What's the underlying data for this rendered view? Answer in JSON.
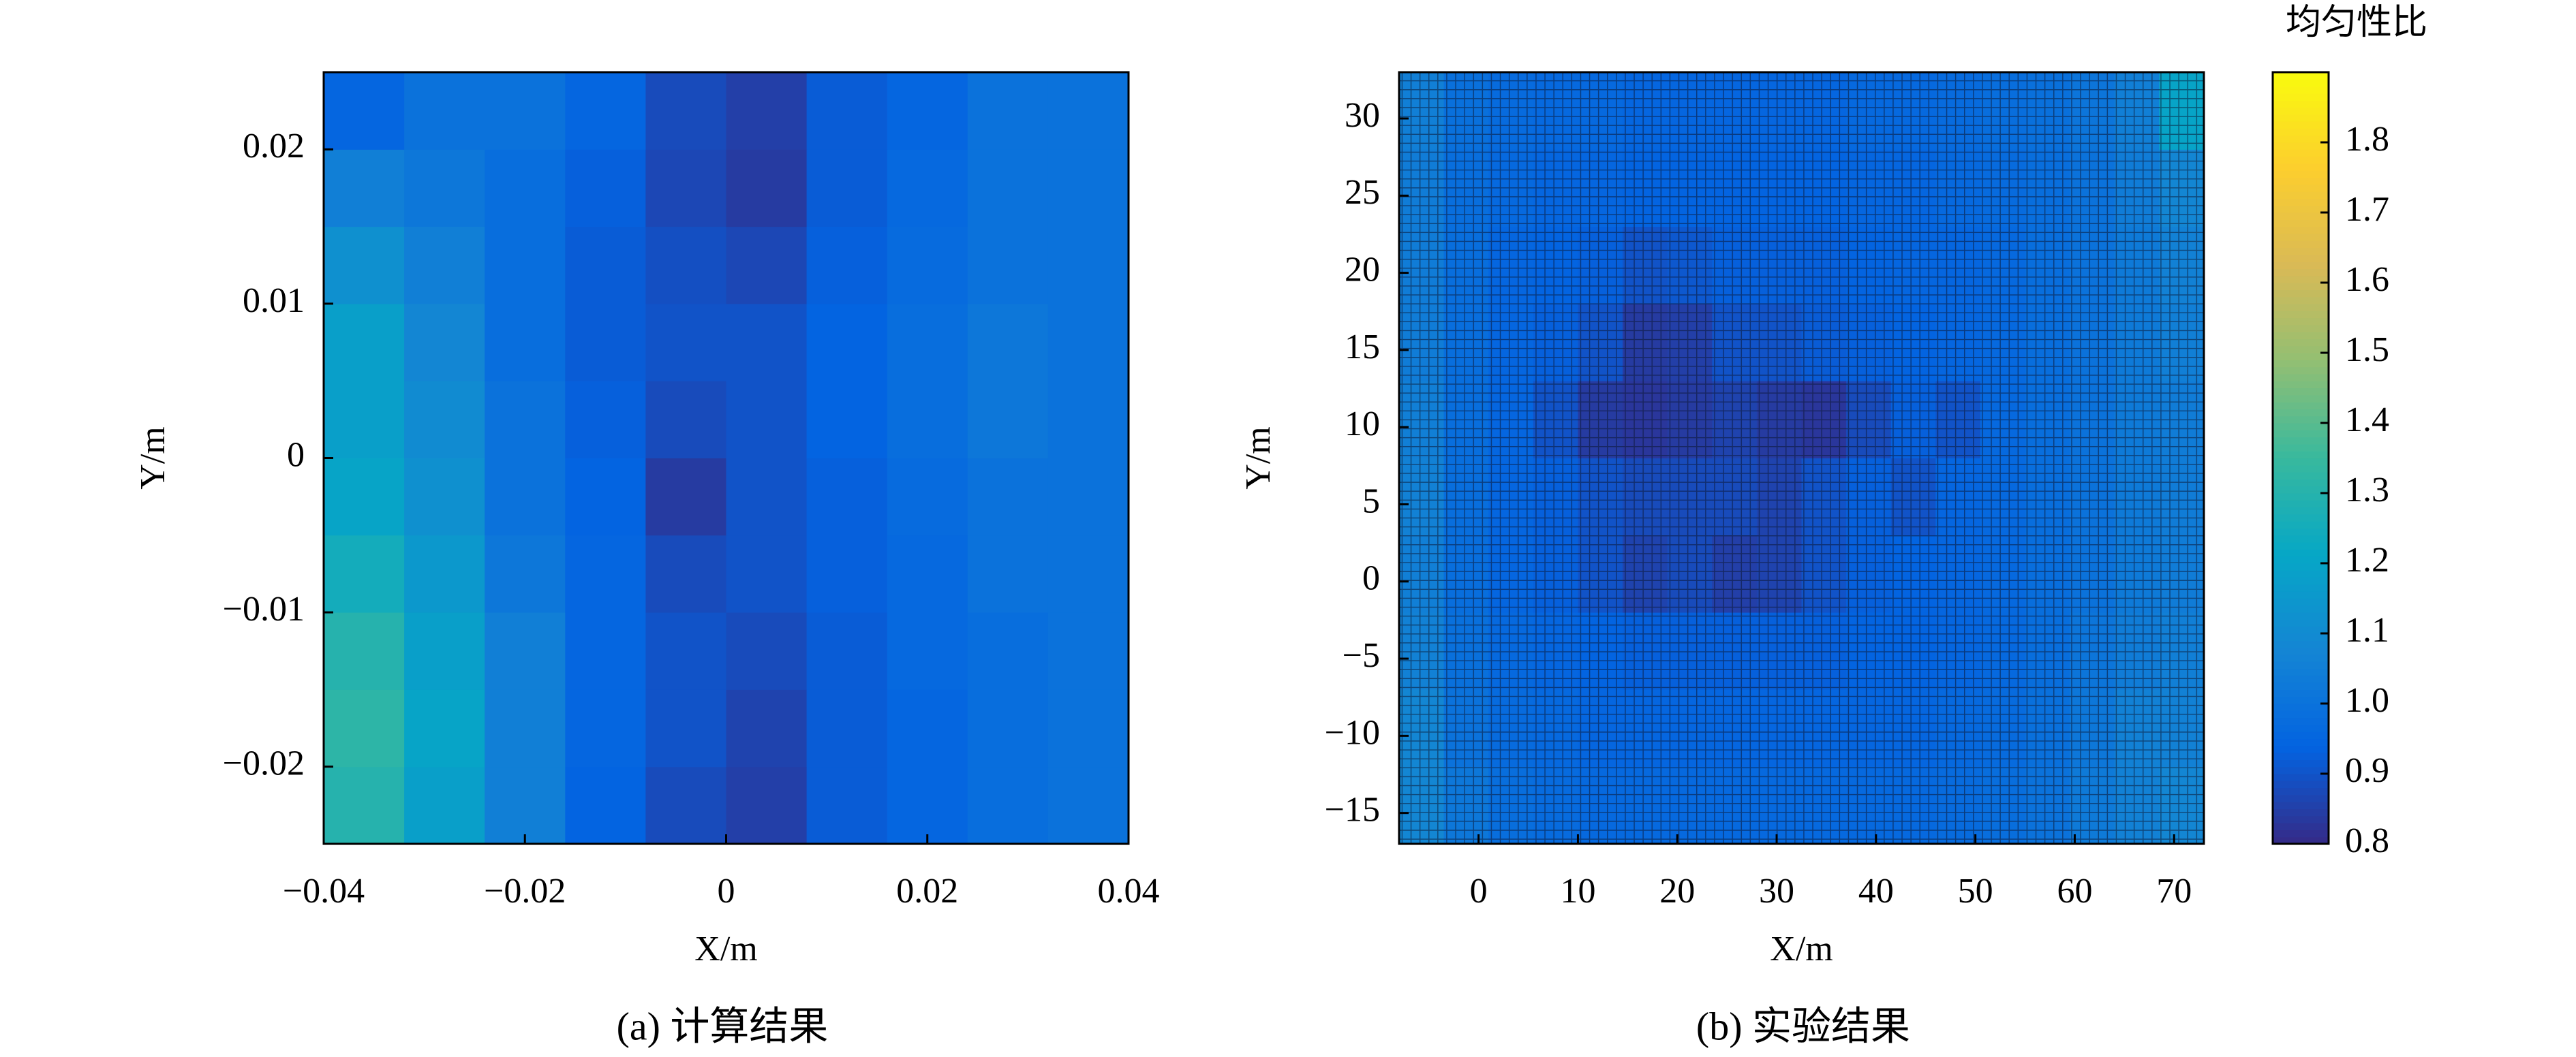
{
  "chart_data": [
    {
      "type": "heatmap",
      "caption": "(a) 计算结果",
      "xlabel": "X/m",
      "ylabel": "Y/m",
      "xlim": [
        -0.04,
        0.04
      ],
      "ylim": [
        -0.025,
        0.025
      ],
      "xticks": [
        {
          "value": -0.04,
          "label": "−0.04"
        },
        {
          "value": -0.02,
          "label": "−0.02"
        },
        0,
        0.02,
        0.04
      ],
      "yticks": [
        {
          "value": -0.02,
          "label": "−0.02"
        },
        {
          "value": -0.01,
          "label": "−0.01"
        },
        0,
        0.01,
        0.02
      ],
      "xbins": [
        -0.04,
        -0.032,
        -0.024,
        -0.016,
        -0.008,
        0,
        0.008,
        0.016,
        0.024,
        0.032,
        0.04
      ],
      "ybins": [
        -0.025,
        -0.02,
        -0.015,
        -0.01,
        -0.005,
        0,
        0.005,
        0.01,
        0.015,
        0.02,
        0.025
      ],
      "cell_edges": false,
      "z": [
        [
          1.3,
          1.18,
          1.05,
          0.94,
          0.88,
          0.85,
          0.92,
          0.95,
          0.98,
          1.0
        ],
        [
          1.32,
          1.2,
          1.05,
          0.95,
          0.9,
          0.86,
          0.92,
          0.95,
          0.98,
          1.0
        ],
        [
          1.3,
          1.18,
          1.05,
          0.95,
          0.9,
          0.88,
          0.92,
          0.96,
          0.98,
          1.0
        ],
        [
          1.25,
          1.15,
          1.02,
          0.95,
          0.88,
          0.9,
          0.93,
          0.96,
          1.0,
          1.0
        ],
        [
          1.2,
          1.12,
          1.0,
          0.94,
          0.84,
          0.9,
          0.93,
          0.97,
          1.0,
          1.0
        ],
        [
          1.18,
          1.1,
          1.0,
          0.93,
          0.88,
          0.9,
          0.94,
          0.98,
          1.02,
          1.0
        ],
        [
          1.18,
          1.08,
          0.98,
          0.92,
          0.9,
          0.9,
          0.94,
          0.98,
          1.02,
          1.0
        ],
        [
          1.12,
          1.05,
          0.98,
          0.92,
          0.89,
          0.87,
          0.93,
          0.97,
          1.0,
          1.0
        ],
        [
          1.05,
          1.02,
          0.98,
          0.93,
          0.87,
          0.84,
          0.92,
          0.96,
          1.0,
          1.0
        ],
        [
          0.95,
          1.0,
          1.0,
          0.95,
          0.88,
          0.85,
          0.92,
          0.95,
          1.0,
          1.0
        ]
      ]
    },
    {
      "type": "heatmap",
      "caption": "(b) 实验结果",
      "xlabel": "X/m",
      "ylabel": "Y/m",
      "xlim": [
        -8,
        73
      ],
      "ylim": [
        -17,
        33
      ],
      "xticks": [
        0,
        10,
        20,
        30,
        40,
        50,
        60,
        70
      ],
      "yticks": [
        {
          "value": -15,
          "label": "−15"
        },
        {
          "value": -10,
          "label": "−10"
        },
        {
          "value": -5,
          "label": "−5"
        },
        0,
        5,
        10,
        15,
        20,
        25,
        30
      ],
      "xbins": [
        -8,
        -3.5,
        1,
        5.5,
        10,
        14.5,
        19,
        23.5,
        28,
        32.5,
        37,
        41.5,
        46,
        50.5,
        55,
        59.5,
        64,
        68.5,
        73
      ],
      "ybins": [
        -17,
        -12,
        -7,
        -2,
        3,
        8,
        13,
        18,
        23,
        28,
        33
      ],
      "cell_edges": true,
      "z": [
        [
          1.08,
          1.02,
          0.98,
          0.97,
          0.96,
          0.96,
          0.96,
          0.96,
          0.96,
          0.96,
          0.96,
          0.96,
          0.97,
          0.98,
          1.0,
          1.03,
          1.06,
          1.08
        ],
        [
          1.08,
          1.0,
          0.97,
          0.96,
          0.95,
          0.95,
          0.95,
          0.95,
          0.95,
          0.95,
          0.95,
          0.95,
          0.96,
          0.97,
          0.99,
          1.02,
          1.06,
          1.06
        ],
        [
          1.06,
          0.99,
          0.96,
          0.95,
          0.94,
          0.93,
          0.93,
          0.93,
          0.93,
          0.93,
          0.94,
          0.94,
          0.95,
          0.96,
          0.98,
          1.01,
          1.04,
          1.05
        ],
        [
          1.05,
          0.98,
          0.95,
          0.93,
          0.9,
          0.86,
          0.88,
          0.85,
          0.86,
          0.9,
          0.93,
          0.94,
          0.95,
          0.96,
          0.98,
          1.0,
          1.03,
          1.04
        ],
        [
          1.06,
          0.98,
          0.95,
          0.93,
          0.9,
          0.88,
          0.88,
          0.88,
          0.86,
          0.9,
          0.93,
          0.9,
          0.95,
          0.96,
          0.98,
          1.0,
          1.03,
          1.04
        ],
        [
          1.05,
          0.98,
          0.95,
          0.9,
          0.84,
          0.83,
          0.84,
          0.86,
          0.84,
          0.83,
          0.88,
          0.93,
          0.9,
          0.96,
          0.98,
          1.0,
          1.03,
          1.04
        ],
        [
          1.04,
          0.98,
          0.95,
          0.93,
          0.9,
          0.84,
          0.85,
          0.9,
          0.9,
          0.92,
          0.93,
          0.94,
          0.95,
          0.96,
          0.98,
          1.0,
          1.03,
          1.05
        ],
        [
          1.04,
          0.98,
          0.95,
          0.94,
          0.93,
          0.9,
          0.91,
          0.93,
          0.93,
          0.93,
          0.94,
          0.95,
          0.95,
          0.96,
          0.98,
          1.0,
          1.03,
          1.06
        ],
        [
          1.04,
          0.98,
          0.96,
          0.95,
          0.95,
          0.94,
          0.94,
          0.94,
          0.94,
          0.94,
          0.95,
          0.95,
          0.96,
          0.97,
          0.98,
          1.0,
          1.04,
          1.08
        ],
        [
          1.05,
          0.99,
          0.97,
          0.96,
          0.96,
          0.95,
          0.95,
          0.95,
          0.95,
          0.95,
          0.96,
          0.96,
          0.97,
          0.98,
          0.99,
          1.01,
          1.05,
          1.2
        ]
      ]
    }
  ],
  "colorbar": {
    "title": "均匀性比",
    "lim": [
      0.8,
      1.9
    ],
    "ticks": [
      0.8,
      0.9,
      {
        "value": 1,
        "label": "1.0"
      },
      1.1,
      1.2,
      1.3,
      1.4,
      1.5,
      1.6,
      1.7,
      1.8
    ],
    "colormap": [
      "#352a87",
      "#0363e1",
      "#1485d4",
      "#06a7c6",
      "#38b99e",
      "#92bf73",
      "#d9ba56",
      "#fcce2e",
      "#f9fb0e"
    ]
  }
}
